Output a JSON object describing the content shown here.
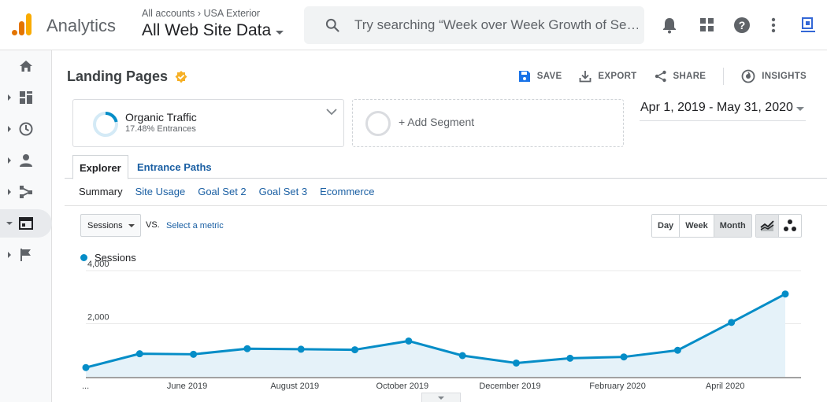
{
  "header": {
    "app_name": "Analytics",
    "breadcrumb": [
      "All accounts",
      "USA Exterior"
    ],
    "view_name": "All Web Site Data",
    "search_placeholder": "Try searching “Week over Week Growth of Se…"
  },
  "icons": {
    "top": [
      "bell-icon",
      "apps-grid-icon",
      "help-icon",
      "more-vert-icon",
      "account-icon"
    ],
    "nav": [
      "home-icon",
      "customization-icon",
      "realtime-icon",
      "audience-icon",
      "acquisition-icon",
      "behavior-icon",
      "conversions-icon"
    ]
  },
  "page": {
    "title": "Landing Pages",
    "actions": {
      "save": "SAVE",
      "export": "EXPORT",
      "share": "SHARE",
      "insights": "INSIGHTS"
    }
  },
  "segment": {
    "name": "Organic Traffic",
    "detail": "17.48% Entrances",
    "add_label": "+ Add Segment"
  },
  "date_range": "Apr 1, 2019 - May 31, 2020",
  "tabs": [
    "Explorer",
    "Entrance Paths"
  ],
  "subtabs": [
    "Summary",
    "Site Usage",
    "Goal Set 2",
    "Goal Set 3",
    "Ecommerce"
  ],
  "controls": {
    "metric": "Sessions",
    "vs": "VS.",
    "select_metric": "Select a metric",
    "granularity": [
      "Day",
      "Week",
      "Month"
    ],
    "selected_granularity": "Month"
  },
  "colors": {
    "series": "#058dc7",
    "fill": "#e5f2f9",
    "link": "#1a5fa3",
    "badge": "#f6b026"
  },
  "chart_data": {
    "type": "area",
    "series": [
      {
        "name": "Sessions",
        "values": [
          350,
          870,
          850,
          1060,
          1040,
          1020,
          1350,
          800,
          520,
          700,
          750,
          1000,
          2050,
          3120
        ]
      }
    ],
    "x": [
      "Apr 2019",
      "May 2019",
      "Jun 2019",
      "Jul 2019",
      "Aug 2019",
      "Sep 2019",
      "Oct 2019",
      "Nov 2019",
      "Dec 2019",
      "Jan 2020",
      "Feb 2020",
      "Mar 2020",
      "Apr 2020",
      "May 2020"
    ],
    "x_tick_labels": [
      "...",
      "June 2019",
      "August 2019",
      "October 2019",
      "December 2019",
      "February 2020",
      "April 2020"
    ],
    "y_ticks": [
      "4,000",
      "2,000"
    ],
    "ylim": [
      0,
      4000
    ],
    "grid": true,
    "legend": "top-left"
  }
}
